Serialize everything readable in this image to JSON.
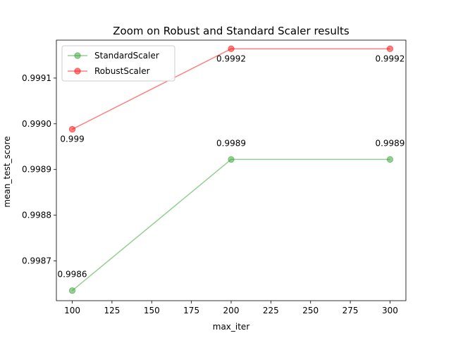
{
  "chart_data": {
    "type": "line",
    "title": "Zoom on Robust and Standard Scaler results",
    "xlabel": "max_iter",
    "ylabel": "mean_test_score",
    "x": [
      100,
      200,
      300
    ],
    "xlim": [
      90,
      310
    ],
    "ylim": [
      0.998613,
      0.999183
    ],
    "xticks": [
      100,
      125,
      150,
      175,
      200,
      225,
      250,
      275,
      300
    ],
    "xtick_labels": [
      "100",
      "125",
      "150",
      "175",
      "200",
      "225",
      "250",
      "275",
      "300"
    ],
    "yticks": [
      0.9987,
      0.9988,
      0.9989,
      0.999,
      0.9991
    ],
    "ytick_labels": [
      "0.9987",
      "0.9988",
      "0.9989",
      "0.9990",
      "0.9991"
    ],
    "grid": false,
    "legend_position": "top-left",
    "series": [
      {
        "name": "StandardScaler",
        "color": "#2ca02c",
        "values": [
          0.998635,
          0.998922,
          0.998922
        ],
        "labels": [
          "0.9986",
          "0.9989",
          "0.9989"
        ],
        "label_position": "above"
      },
      {
        "name": "RobustScaler",
        "color": "#ff0000",
        "values": [
          0.998988,
          0.999164,
          0.999164
        ],
        "labels": [
          "0.999",
          "0.9992",
          "0.9992"
        ],
        "label_position": "below"
      }
    ]
  }
}
